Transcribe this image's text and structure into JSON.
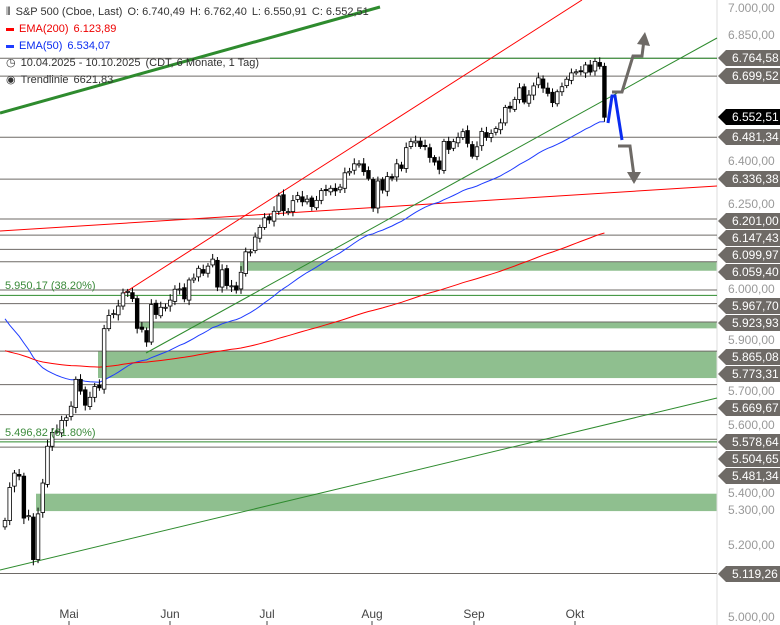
{
  "legend": {
    "instrument": "S&P 500 (Cboe, Last)",
    "open": "O: 6.740,49",
    "high": "H: 6.762,40",
    "low": "L: 6.550,91",
    "close": "C: 6.552,51",
    "ema200_label": "EMA(200)",
    "ema200_value": "6.123,89",
    "ema50_label": "EMA(50)",
    "ema50_value": "6.534,07",
    "range": "10.04.2025 - 10.10.2025",
    "range_info": "(CDT, 6 Monate, 1 Tag)",
    "trend_label": "Trendlinie",
    "trend_value": "6621,83"
  },
  "fib": [
    {
      "label": "5.950,17 (38.20%)",
      "price": 5950.17
    },
    {
      "label": "5.496,82 (61.80%)",
      "price": 5496.82
    }
  ],
  "levels": [
    {
      "label": "6.764,58",
      "price": 6764.58
    },
    {
      "label": "6.699,52",
      "price": 6699.52
    },
    {
      "label": "6.552,51",
      "price": 6552.51,
      "current": true
    },
    {
      "label": "6.481,34",
      "price": 6481.34
    },
    {
      "label": "6.336,38",
      "price": 6336.38
    },
    {
      "label": "6.201,00",
      "price": 6201.0
    },
    {
      "label": "6.147,43",
      "price": 6147.43
    },
    {
      "label": "6.099,97",
      "price": 6099.97
    },
    {
      "label": "6.059,40",
      "price": 6059.4
    },
    {
      "label": "5.967,70",
      "price": 5967.7
    },
    {
      "label": "5.923,93",
      "price": 5923.93
    },
    {
      "label": "5.865,08",
      "price": 5865.08
    },
    {
      "label": "5.773,31",
      "price": 5773.31
    },
    {
      "label": "5.669,67",
      "price": 5669.67
    },
    {
      "label": "5.578,64",
      "price": 5578.64
    },
    {
      "label": "5.504,65",
      "price": 5504.65
    },
    {
      "label": "5.481,34",
      "price": 5481.34
    },
    {
      "label": "5.119,26",
      "price": 5119.26
    }
  ],
  "axis_ticks": [
    "7.000,00",
    "6.850,00",
    "6.400,00",
    "6.250,00",
    "6.000,00",
    "5.900,00",
    "5.700,00",
    "5.600,00",
    "5.400,00",
    "5.300,00",
    "5.200,00",
    "5.000,00"
  ],
  "months": [
    "Mai",
    "Jun",
    "Jul",
    "Aug",
    "Sep",
    "Okt"
  ],
  "colors": {
    "ema200": "#ff0000",
    "ema50": "#1f3cff",
    "zone": "#8fbf8f",
    "trend": "#2e8b2e",
    "level": "#6e6a66"
  },
  "chart_data": {
    "type": "candlestick",
    "scale": "log",
    "ylim": [
      5000,
      7000
    ],
    "start": "10.04.2025",
    "end": "10.10.2025",
    "close": [
      5268,
      5363,
      5405,
      5396,
      5275,
      5282,
      5158,
      5287,
      5376,
      5484,
      5525,
      5528,
      5561,
      5569,
      5604,
      5686,
      5650,
      5607,
      5631,
      5664,
      5660,
      5844,
      5886,
      5892,
      5916,
      5958,
      5963,
      5940,
      5845,
      5842,
      5802,
      5921,
      5889,
      5912,
      5912,
      5935,
      5970,
      5971,
      5939,
      6000,
      6006,
      6038,
      6022,
      6045,
      6068,
      5977,
      6033,
      5982,
      5981,
      5967,
      6025,
      6092,
      6092,
      6141,
      6173,
      6205,
      6198,
      6227,
      6279,
      6229,
      6226,
      6263,
      6280,
      6259,
      6268,
      6243,
      6264,
      6297,
      6297,
      6305,
      6296,
      6309,
      6358,
      6363,
      6389,
      6389,
      6362,
      6339,
      6238,
      6330,
      6299,
      6345,
      6340,
      6389,
      6373,
      6445,
      6466,
      6468,
      6449,
      6449,
      6411,
      6395,
      6370,
      6467,
      6439,
      6466,
      6481,
      6501,
      6460,
      6415,
      6448,
      6502,
      6481,
      6495,
      6512,
      6532,
      6587,
      6584,
      6615,
      6657,
      6606,
      6631,
      6664,
      6693,
      6656,
      6637,
      6604,
      6643,
      6661,
      6688,
      6711,
      6715,
      6715,
      6740,
      6714,
      6753,
      6735,
      6552
    ]
  }
}
